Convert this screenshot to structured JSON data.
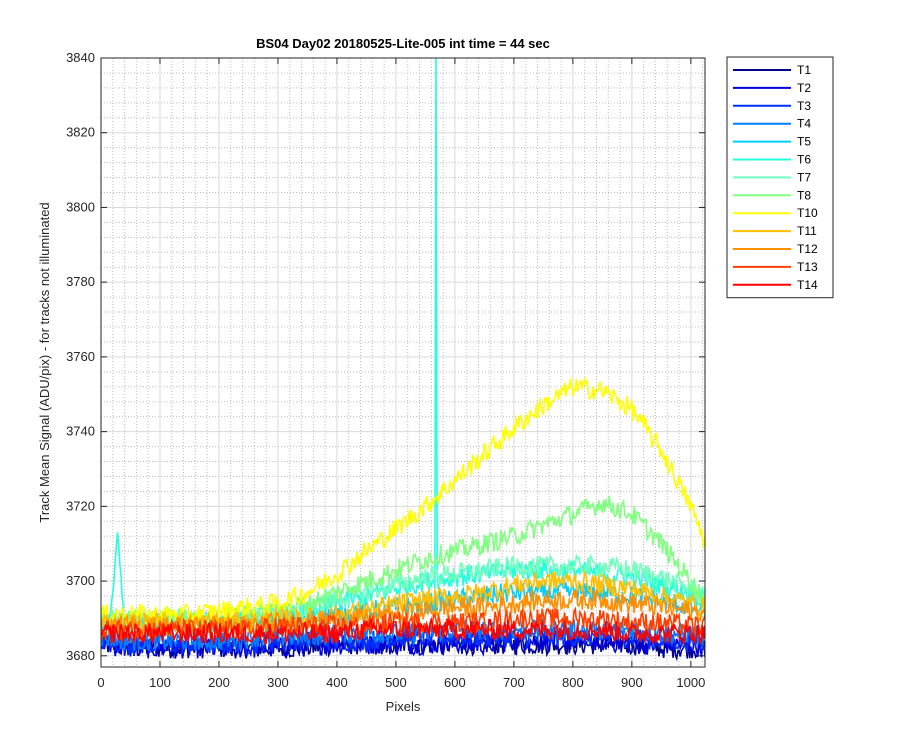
{
  "chart_data": {
    "type": "line",
    "title": "BS04 Day02 20180525-Lite-005 int time = 44 sec",
    "xlabel": "Pixels",
    "ylabel": "Track Mean Signal (ADU/pix) - for tracks not illuminated",
    "xlim": [
      0,
      1024
    ],
    "ylim": [
      3677,
      3840
    ],
    "xticks": [
      0,
      100,
      200,
      300,
      400,
      500,
      600,
      700,
      800,
      900,
      1000
    ],
    "yticks": [
      3680,
      3700,
      3720,
      3740,
      3760,
      3780,
      3800,
      3820,
      3840
    ],
    "grid": true,
    "minor_grid": true,
    "legend_position": "outside-top-right",
    "x": [
      0,
      50,
      100,
      150,
      200,
      250,
      300,
      350,
      400,
      450,
      500,
      550,
      600,
      650,
      700,
      750,
      800,
      850,
      900,
      950,
      1000,
      1023
    ],
    "series": [
      {
        "name": "T1",
        "color": "#00008f",
        "values": [
          3683,
          3682,
          3682,
          3682,
          3682,
          3682,
          3682,
          3682,
          3683,
          3683,
          3683,
          3683,
          3683,
          3683,
          3683,
          3683,
          3683,
          3683,
          3683,
          3682,
          3682,
          3682
        ]
      },
      {
        "name": "T2",
        "color": "#0000df",
        "values": [
          3683,
          3682,
          3682,
          3682,
          3682,
          3682,
          3682,
          3683,
          3683,
          3683,
          3683,
          3683,
          3683,
          3683,
          3684,
          3684,
          3684,
          3684,
          3683,
          3683,
          3683,
          3682
        ]
      },
      {
        "name": "T3",
        "color": "#0030ff",
        "values": [
          3684,
          3683,
          3683,
          3683,
          3683,
          3683,
          3684,
          3684,
          3684,
          3684,
          3685,
          3685,
          3685,
          3685,
          3685,
          3685,
          3685,
          3685,
          3685,
          3684,
          3684,
          3684
        ]
      },
      {
        "name": "T4",
        "color": "#0080ff",
        "values": [
          3685,
          3684,
          3684,
          3684,
          3684,
          3685,
          3685,
          3685,
          3686,
          3686,
          3686,
          3686,
          3687,
          3687,
          3687,
          3687,
          3687,
          3687,
          3687,
          3686,
          3686,
          3685
        ]
      },
      {
        "name": "T5",
        "color": "#00cfff",
        "values": [
          3688,
          3688,
          3688,
          3688,
          3688,
          3689,
          3689,
          3690,
          3691,
          3692,
          3693,
          3694,
          3695,
          3696,
          3697,
          3697,
          3697,
          3697,
          3696,
          3695,
          3693,
          3692
        ]
      },
      {
        "name": "T6",
        "color": "#20ffdf",
        "values": [
          3689,
          3689,
          3689,
          3689,
          3689,
          3690,
          3691,
          3692,
          3694,
          3696,
          3698,
          3700,
          3701,
          3702,
          3703,
          3703,
          3703,
          3702,
          3701,
          3699,
          3697,
          3695
        ]
      },
      {
        "name": "T7",
        "color": "#70ffbf",
        "values": [
          3689,
          3689,
          3689,
          3689,
          3689,
          3690,
          3691,
          3693,
          3695,
          3697,
          3699,
          3701,
          3702,
          3703,
          3704,
          3704,
          3704,
          3704,
          3703,
          3701,
          3698,
          3696
        ]
      },
      {
        "name": "T8",
        "color": "#80ff80",
        "values": [
          3690,
          3690,
          3690,
          3690,
          3690,
          3691,
          3692,
          3694,
          3697,
          3700,
          3703,
          3706,
          3708,
          3710,
          3712,
          3715,
          3718,
          3721,
          3718,
          3710,
          3700,
          3695
        ]
      },
      {
        "name": "T10",
        "color": "#ffff00",
        "values": [
          3691,
          3691,
          3691,
          3691,
          3692,
          3693,
          3694,
          3697,
          3702,
          3708,
          3714,
          3720,
          3727,
          3734,
          3741,
          3747,
          3752,
          3751,
          3746,
          3735,
          3720,
          3711
        ]
      },
      {
        "name": "T11",
        "color": "#ffbf00",
        "values": [
          3689,
          3689,
          3689,
          3689,
          3689,
          3689,
          3690,
          3690,
          3691,
          3692,
          3694,
          3695,
          3696,
          3697,
          3699,
          3700,
          3700,
          3699,
          3698,
          3696,
          3694,
          3693
        ]
      },
      {
        "name": "T12",
        "color": "#ff8f00",
        "values": [
          3688,
          3688,
          3688,
          3688,
          3688,
          3688,
          3689,
          3689,
          3690,
          3690,
          3691,
          3692,
          3693,
          3693,
          3694,
          3695,
          3695,
          3695,
          3694,
          3693,
          3692,
          3691
        ]
      },
      {
        "name": "T13",
        "color": "#ff4000",
        "values": [
          3687,
          3687,
          3687,
          3687,
          3687,
          3687,
          3688,
          3688,
          3688,
          3688,
          3689,
          3689,
          3689,
          3689,
          3690,
          3690,
          3690,
          3690,
          3689,
          3689,
          3688,
          3688
        ]
      },
      {
        "name": "T14",
        "color": "#ff0000",
        "values": [
          3686,
          3686,
          3686,
          3686,
          3686,
          3686,
          3686,
          3686,
          3686,
          3687,
          3687,
          3687,
          3687,
          3687,
          3687,
          3687,
          3687,
          3687,
          3686,
          3686,
          3686,
          3686
        ]
      }
    ],
    "annotations": [
      {
        "series": "T6",
        "type": "spike",
        "x": 28,
        "peak": 3713
      },
      {
        "series": "T6",
        "type": "spike",
        "x": 568,
        "peak": 3840
      }
    ]
  }
}
